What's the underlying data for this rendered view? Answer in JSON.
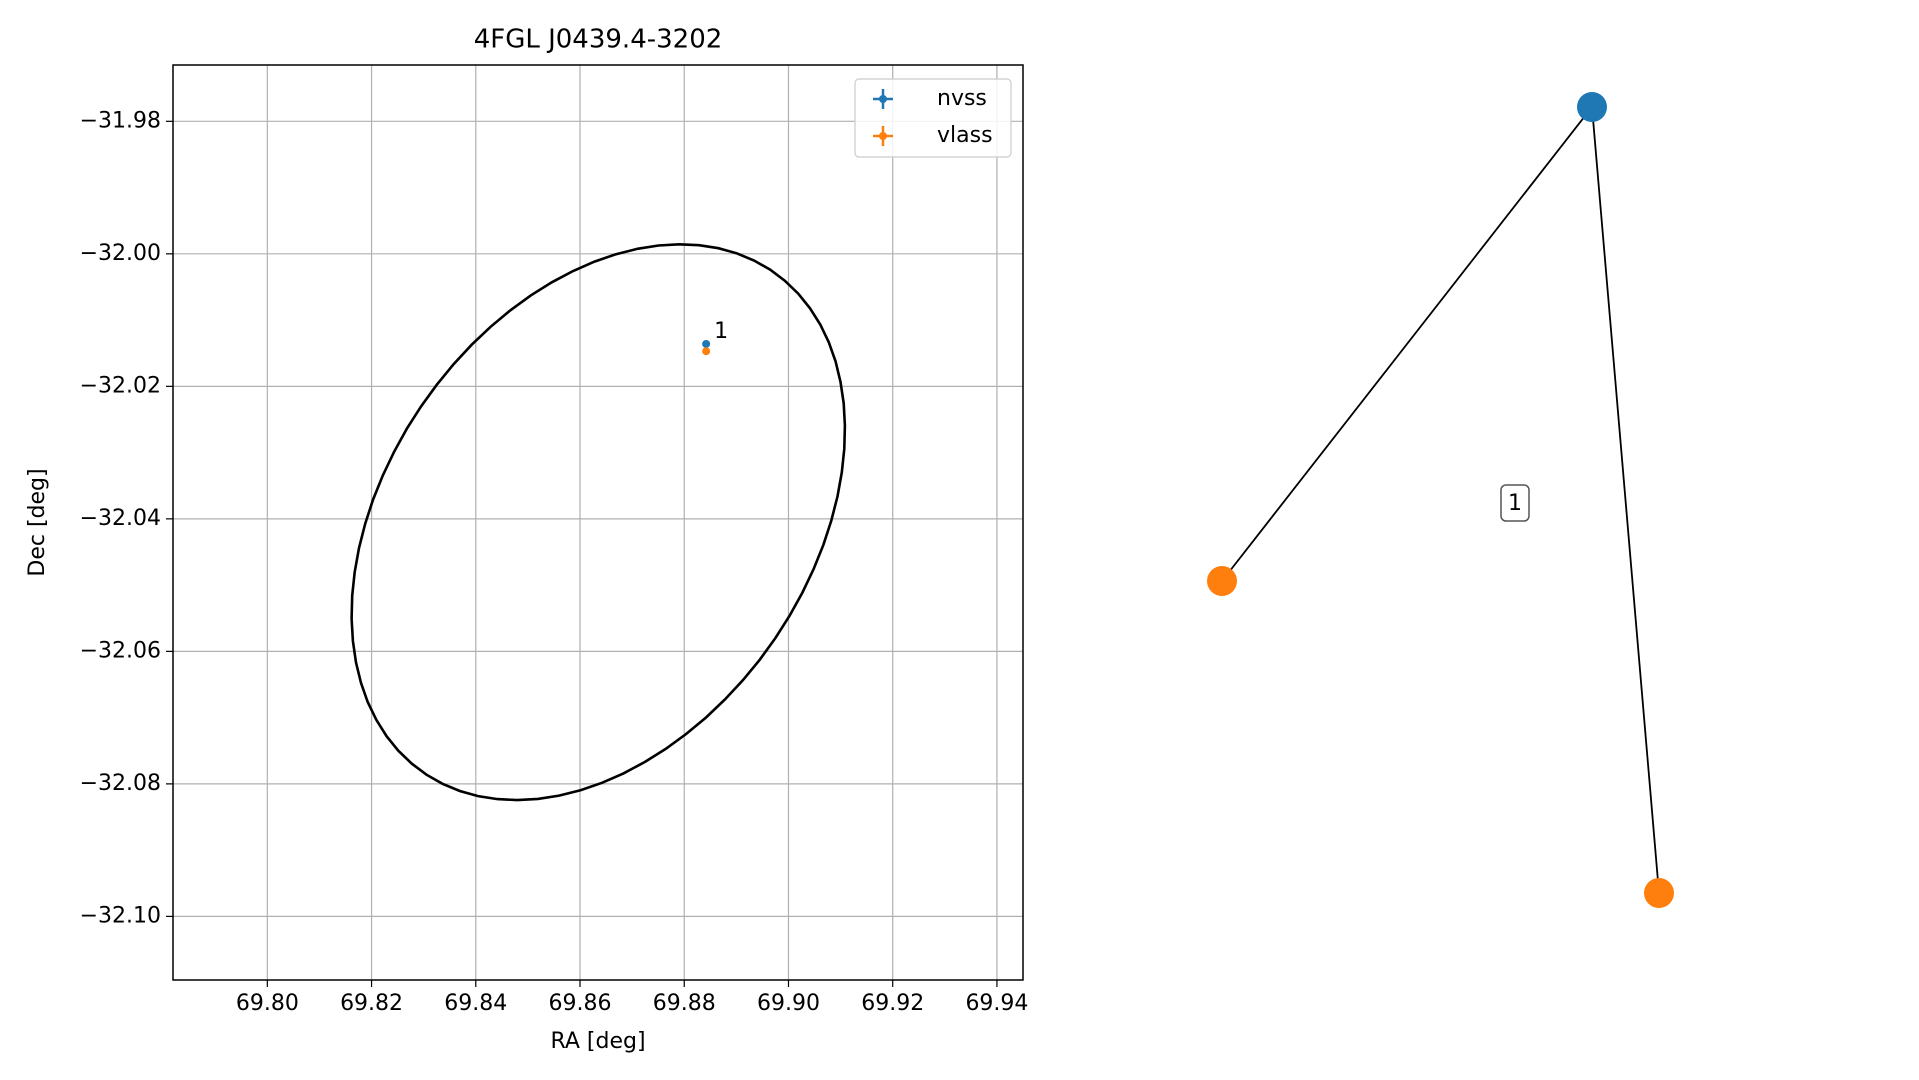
{
  "chart_data": [
    {
      "type": "scatter",
      "title": "4FGL J0439.4-3202",
      "x_label": "RA [deg]",
      "y_label": "Dec [deg]",
      "xlim": [
        69.7819,
        69.945
      ],
      "ylim": [
        -32.1096,
        -31.9715
      ],
      "xticks": [
        {
          "value": 69.8,
          "label": "69.80"
        },
        {
          "value": 69.82,
          "label": "69.82"
        },
        {
          "value": 69.84,
          "label": "69.84"
        },
        {
          "value": 69.86,
          "label": "69.86"
        },
        {
          "value": 69.88,
          "label": "69.88"
        },
        {
          "value": 69.9,
          "label": "69.90"
        },
        {
          "value": 69.92,
          "label": "69.92"
        },
        {
          "value": 69.94,
          "label": "69.94"
        }
      ],
      "yticks": [
        {
          "value": -32.1,
          "label": "−32.10"
        },
        {
          "value": -32.08,
          "label": "−32.08"
        },
        {
          "value": -32.06,
          "label": "−32.06"
        },
        {
          "value": -32.04,
          "label": "−32.04"
        },
        {
          "value": -32.02,
          "label": "−32.02"
        },
        {
          "value": -32.0,
          "label": "−32.00"
        },
        {
          "value": -31.98,
          "label": "−31.98"
        }
      ],
      "grid": true,
      "legend": "upper right",
      "series": [
        {
          "name": "nvss",
          "color": "#1f77b4",
          "x": [
            69.8842
          ],
          "values": [
            -32.0136
          ],
          "labels": [
            "1"
          ]
        },
        {
          "name": "vlass",
          "color": "#ff7f0e",
          "x": [
            69.8842
          ],
          "values": [
            -32.0147
          ]
        }
      ],
      "ellipse": {
        "center_x": 69.8635,
        "center_y": -32.0405,
        "semi_major": 0.052,
        "semi_minor": 0.036,
        "angle": 35,
        "color": "#000000"
      }
    },
    {
      "type": "network",
      "nodes": [
        {
          "color": "#1f77b4"
        },
        {
          "color": "#ff7f0e"
        },
        {
          "color": "#ff7f0e"
        }
      ],
      "edges": [
        [
          0,
          1
        ],
        [
          0,
          2
        ]
      ],
      "label": "1"
    }
  ]
}
